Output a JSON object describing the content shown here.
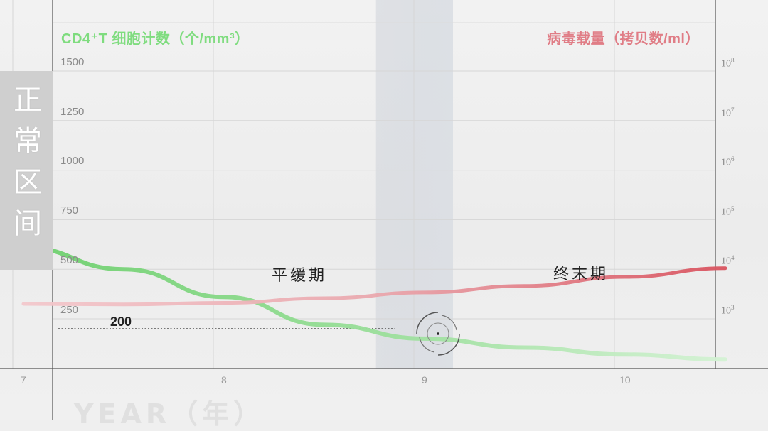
{
  "chart_data": {
    "type": "line",
    "title": "",
    "left_axis_label": "CD4⁺T 细胞计数（个/mm³）",
    "right_axis_label": "病毒载量（拷贝数/ml）",
    "xlabel": "YEAR（年）",
    "x_ticks": [
      "7",
      "8",
      "9",
      "10"
    ],
    "x_range": [
      7,
      10.5
    ],
    "left_ticks": [
      "1500",
      "1250",
      "1000",
      "750",
      "500",
      "250"
    ],
    "left_range": [
      0,
      1600
    ],
    "right_ticks": [
      {
        "base": "10",
        "exp": "8"
      },
      {
        "base": "10",
        "exp": "7"
      },
      {
        "base": "10",
        "exp": "6"
      },
      {
        "base": "10",
        "exp": "5"
      },
      {
        "base": "10",
        "exp": "4"
      },
      {
        "base": "10",
        "exp": "3"
      }
    ],
    "right_scale": "log",
    "grid": true,
    "series": [
      {
        "axis": "left",
        "color": "#7ed67e",
        "x": [
          7.0,
          7.5,
          8.0,
          8.5,
          9.0,
          9.5,
          10.0,
          10.5
        ],
        "values": [
          610,
          500,
          360,
          220,
          150,
          105,
          70,
          45
        ]
      },
      {
        "axis": "right",
        "color": "#e07d86",
        "x": [
          7.0,
          7.5,
          8.0,
          8.5,
          9.0,
          9.5,
          10.0,
          10.5
        ],
        "values": [
          2000,
          1950,
          2100,
          2600,
          3400,
          4600,
          7000,
          10500
        ]
      }
    ],
    "threshold": {
      "value": 200,
      "label": "200"
    },
    "shaded_region": {
      "x": [
        8.85,
        9.0
      ]
    },
    "annotations": [
      {
        "text": "平缓期"
      },
      {
        "text": "终末期"
      }
    ],
    "side_badge": "正常区间"
  }
}
